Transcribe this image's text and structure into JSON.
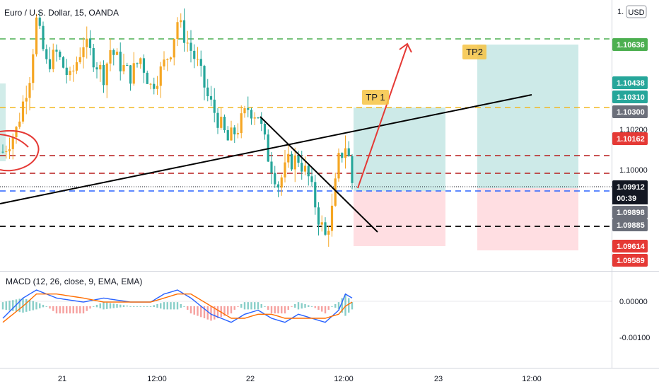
{
  "symbol_title": "Euro / U.S. Dollar, 15, OANDA",
  "currency_button": "USD",
  "macd_title": "MACD (12, 26, close, 9, EMA, EMA)",
  "colors": {
    "up": "#f5a623",
    "down": "#26a69a",
    "bg": "#ffffff",
    "tp_zone": "#b2dfdb",
    "sl_zone": "#ffcdd2",
    "green_dash": "#4caf50",
    "orange_dash": "#f2b824",
    "red_dash": "#b71c1c",
    "blue_dash": "#2962ff",
    "black": "#000000",
    "arrow_red": "#e53935"
  },
  "annotations": {
    "tp1": "TP 1",
    "tp2": "TP2"
  },
  "chart_data": [
    {
      "type": "candlestick",
      "title": "Euro / U.S. Dollar, 15, OANDA",
      "ylim": [
        1.0953,
        1.1072
      ],
      "x_ticks": [
        "21",
        "12:00",
        "22",
        "12:00",
        "23",
        "12:00"
      ],
      "y_ticks": [
        "1.10000",
        "1.10200"
      ],
      "price_labels": [
        {
          "value": "1.10636",
          "color": "#4caf50"
        },
        {
          "value": "1.10438",
          "color": "#26a69a"
        },
        {
          "value": "1.10310",
          "color": "#26a69a"
        },
        {
          "value": "1.10300",
          "color": "#555555"
        },
        {
          "value": "1.10162",
          "color": "#e53935"
        },
        {
          "value": "1.09912",
          "color": "#131722"
        },
        {
          "value": "00:39",
          "color": "#131722"
        },
        {
          "value": "1.09898",
          "color": "#555555"
        },
        {
          "value": "1.09885",
          "color": "#555555"
        },
        {
          "value": "1.09614",
          "color": "#e53935"
        },
        {
          "value": "1.09589",
          "color": "#e53935"
        }
      ],
      "horizontal_levels": [
        {
          "price": 1.10636,
          "color": "green"
        },
        {
          "price": 1.103,
          "color": "orange"
        },
        {
          "price": 1.10065,
          "color": "red"
        },
        {
          "price": 1.09975,
          "color": "red"
        },
        {
          "price": 1.09912,
          "color": "dotted"
        },
        {
          "price": 1.09898,
          "color": "blue"
        },
        {
          "price": 1.09885,
          "color": "black"
        }
      ],
      "path_points": [
        [
          0,
          1.1005
        ],
        [
          4,
          1.1015
        ],
        [
          8,
          1.104
        ],
        [
          10,
          1.1065
        ],
        [
          13,
          1.1045
        ],
        [
          16,
          1.105
        ],
        [
          20,
          1.1038
        ],
        [
          24,
          1.1055
        ],
        [
          27,
          1.1048
        ],
        [
          30,
          1.104
        ],
        [
          32,
          1.1052
        ],
        [
          35,
          1.1045
        ],
        [
          38,
          1.104
        ],
        [
          41,
          1.1048
        ],
        [
          44,
          1.1035
        ],
        [
          47,
          1.1042
        ],
        [
          50,
          1.1052
        ],
        [
          52,
          1.1065
        ],
        [
          55,
          1.1055
        ],
        [
          58,
          1.1045
        ],
        [
          61,
          1.103
        ],
        [
          64,
          1.102
        ],
        [
          67,
          1.101
        ],
        [
          70,
          1.1016
        ],
        [
          73,
          1.1025
        ],
        [
          76,
          1.1022
        ],
        [
          79,
          1.1003
        ],
        [
          82,
          1.099
        ],
        [
          85,
          1.1
        ],
        [
          88,
          1.1002
        ],
        [
          91,
          1.0993
        ],
        [
          94,
          1.0975
        ],
        [
          96,
          1.0966
        ],
        [
          98,
          1.0978
        ],
        [
          100,
          1.1001
        ],
        [
          102,
          1.1008
        ],
        [
          103,
          1.1002
        ],
        [
          104,
          1.0991
        ]
      ],
      "positions": [
        {
          "label": "TP 1",
          "entry": 1.09898,
          "target": 1.103,
          "stop": 1.09614
        },
        {
          "label": "TP2",
          "entry": 1.09898,
          "target": 1.10636,
          "stop": 1.09589
        }
      ]
    },
    {
      "type": "line",
      "title": "MACD (12, 26, close, 9, EMA, EMA)",
      "ylim": [
        -0.00135,
        0.00075
      ],
      "y_ticks": [
        "0.00000",
        "-0.00100"
      ],
      "series": [
        {
          "name": "MACD",
          "color": "#2962ff"
        },
        {
          "name": "Signal",
          "color": "#ff6d00"
        }
      ],
      "macd_points": [
        [
          0,
          -0.0003
        ],
        [
          6,
          0.0002
        ],
        [
          10,
          0.0004
        ],
        [
          16,
          0.0002
        ],
        [
          24,
          0.0001
        ],
        [
          30,
          0.0002
        ],
        [
          38,
          0.0001
        ],
        [
          44,
          0.0001
        ],
        [
          48,
          0.0003
        ],
        [
          52,
          0.0004
        ],
        [
          56,
          0.0002
        ],
        [
          62,
          -0.0002
        ],
        [
          68,
          -0.0004
        ],
        [
          72,
          -0.0002
        ],
        [
          76,
          -0.0001
        ],
        [
          80,
          -0.0003
        ],
        [
          84,
          -0.0004
        ],
        [
          88,
          -0.0002
        ],
        [
          92,
          -0.0003
        ],
        [
          96,
          -0.0004
        ],
        [
          100,
          -0.0001
        ],
        [
          102,
          0.0003
        ],
        [
          104,
          0.0002
        ]
      ],
      "signal_points": [
        [
          0,
          -0.0004
        ],
        [
          6,
          0.0
        ],
        [
          10,
          0.0003
        ],
        [
          16,
          0.0003
        ],
        [
          24,
          0.0002
        ],
        [
          30,
          0.0001
        ],
        [
          38,
          0.0001
        ],
        [
          44,
          0.0001
        ],
        [
          48,
          0.0002
        ],
        [
          52,
          0.0003
        ],
        [
          56,
          0.0003
        ],
        [
          62,
          0.0
        ],
        [
          68,
          -0.0003
        ],
        [
          72,
          -0.0003
        ],
        [
          76,
          -0.0002
        ],
        [
          80,
          -0.0002
        ],
        [
          84,
          -0.0003
        ],
        [
          88,
          -0.0003
        ],
        [
          92,
          -0.0003
        ],
        [
          96,
          -0.0003
        ],
        [
          100,
          -0.0002
        ],
        [
          102,
          0.0
        ],
        [
          104,
          0.0001
        ]
      ]
    }
  ]
}
